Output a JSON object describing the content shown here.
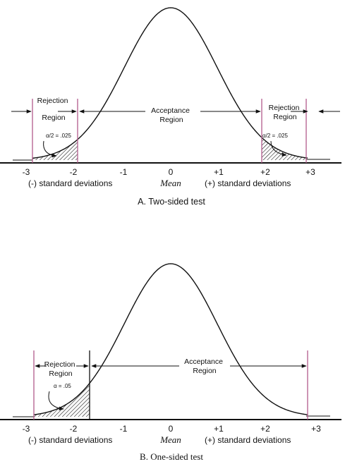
{
  "panel_a": {
    "tick_labels": [
      "-3",
      "-2",
      "-1",
      "0",
      "+1",
      "+2",
      "+3"
    ],
    "left_dev_label": "(-) standard deviations",
    "mean_label": "Mean",
    "right_dev_label": "(+) standard deviations",
    "caption": "A. Two-sided test",
    "rejection_left": [
      "Rejection",
      "Region"
    ],
    "rejection_right": [
      "Rejection",
      "Region"
    ],
    "acceptance": [
      "Acceptance",
      "Region"
    ],
    "alpha_left": "α/2 = .025",
    "alpha_right": "α/2 = .025"
  },
  "panel_b": {
    "tick_labels": [
      "-3",
      "-2",
      "-1",
      "0",
      "+1",
      "+2",
      "+3"
    ],
    "left_dev_label": "(-) standard deviations",
    "mean_label": "Mean",
    "right_dev_label": "(+) standard deviations",
    "caption": "B. One-sided test",
    "rejection": [
      "Rejection",
      "Region"
    ],
    "acceptance": [
      "Acceptance",
      "Region"
    ],
    "alpha": "α = .05"
  },
  "colors": {
    "line": "#111111",
    "rejection_boundary": "#b25a8c",
    "hatch": "#111111"
  }
}
